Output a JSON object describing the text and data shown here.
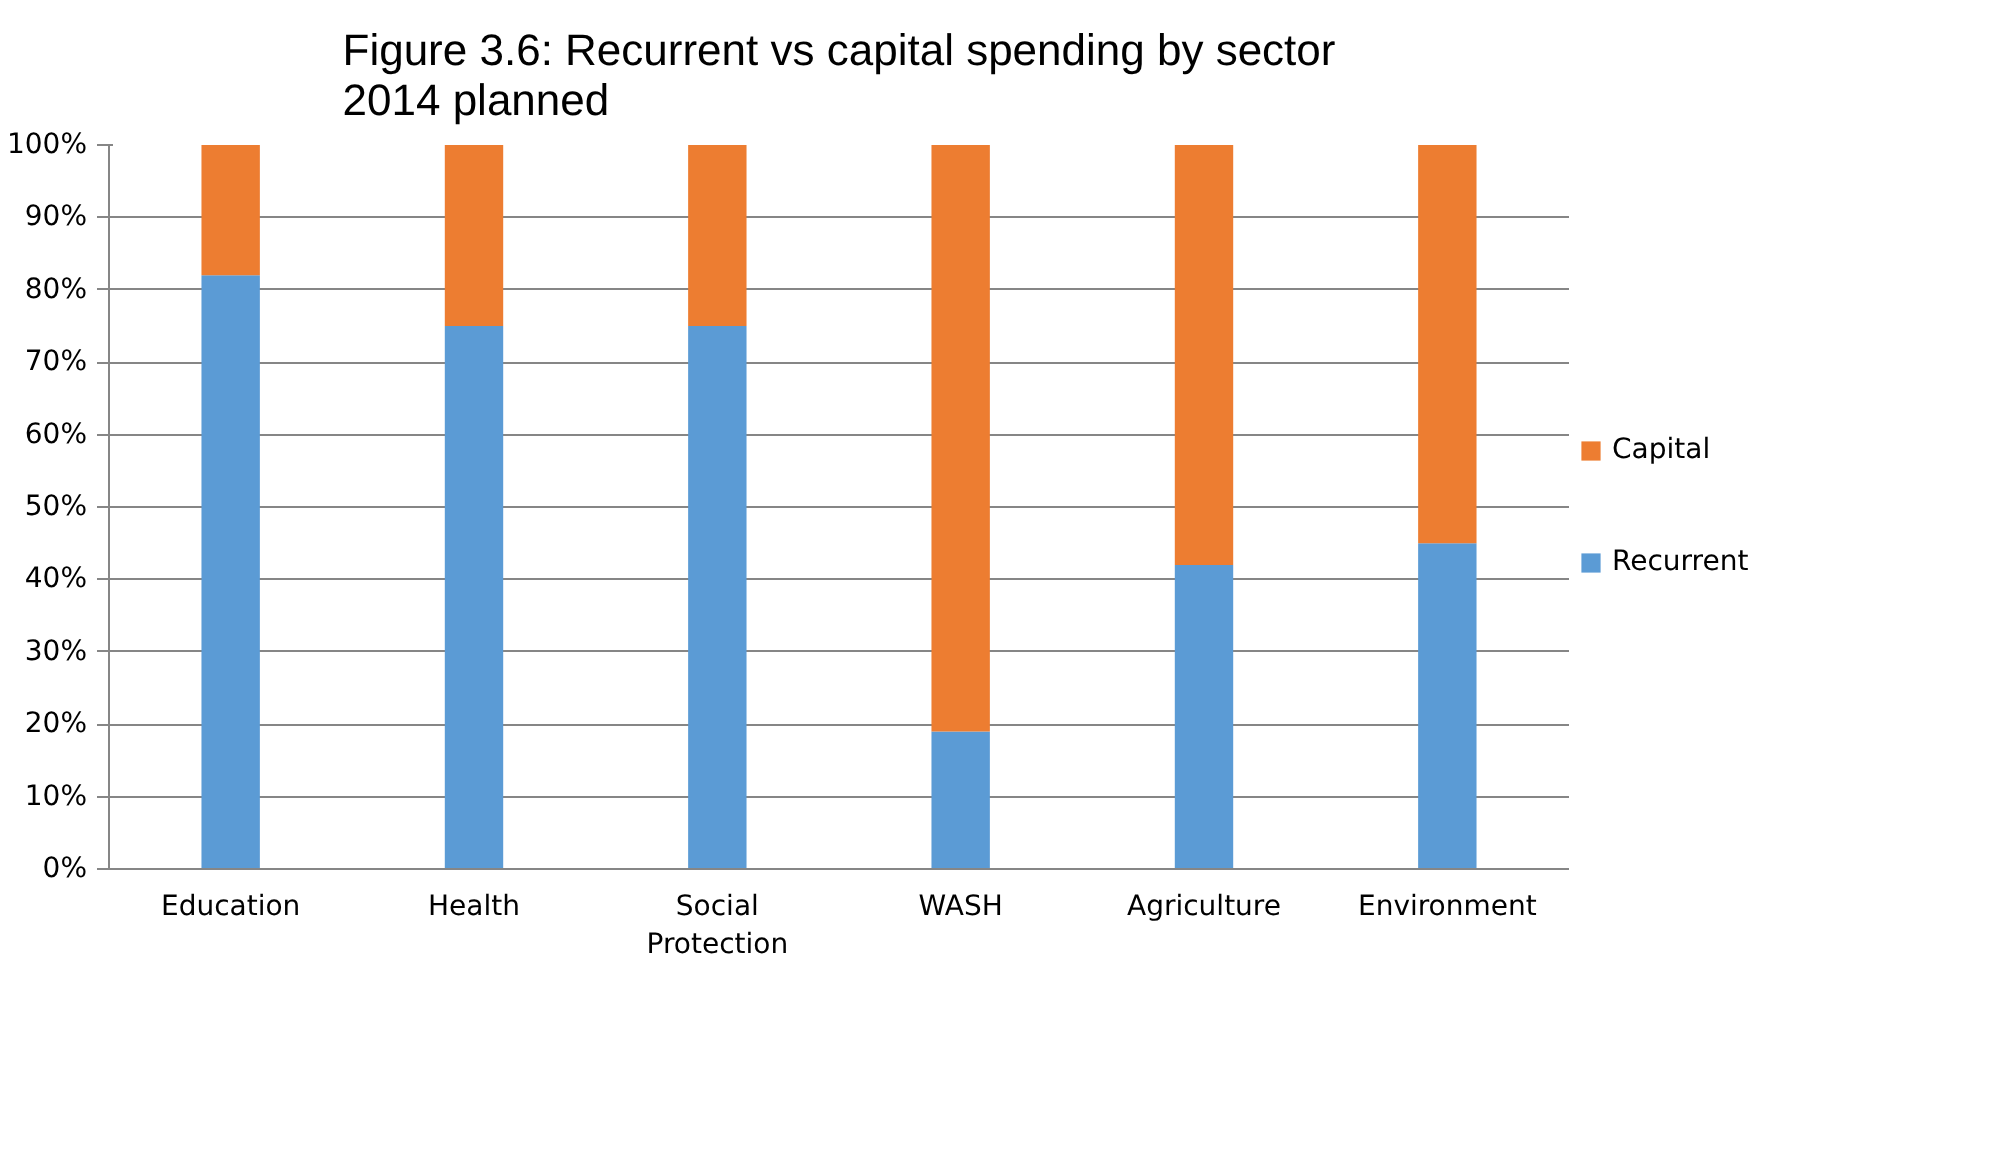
{
  "chart_data": {
    "type": "bar",
    "title": "Figure 3.6: Recurrent vs capital spending by sector\n2014 planned",
    "categories": [
      "Education",
      "Health",
      "Social Protection",
      "WASH",
      "Agriculture",
      "Environment"
    ],
    "stacked": true,
    "series": [
      {
        "name": "Recurrent",
        "color": "#5b9bd5",
        "values": [
          82,
          75,
          75,
          19,
          42,
          45
        ]
      },
      {
        "name": "Capital",
        "color": "#ed7d31",
        "values": [
          18,
          25,
          25,
          81,
          58,
          55
        ]
      }
    ],
    "ylim": [
      0,
      100
    ],
    "yticks": [
      {
        "value": 0,
        "label": "0%"
      },
      {
        "value": 10,
        "label": "10%"
      },
      {
        "value": 20,
        "label": "20%"
      },
      {
        "value": 30,
        "label": "30%"
      },
      {
        "value": 40,
        "label": "40%"
      },
      {
        "value": 50,
        "label": "50%"
      },
      {
        "value": 60,
        "label": "60%"
      },
      {
        "value": 70,
        "label": "70%"
      },
      {
        "value": 80,
        "label": "80%"
      },
      {
        "value": 90,
        "label": "90%"
      },
      {
        "value": 100,
        "label": "100%"
      }
    ],
    "grid": "y",
    "legend": "right"
  }
}
